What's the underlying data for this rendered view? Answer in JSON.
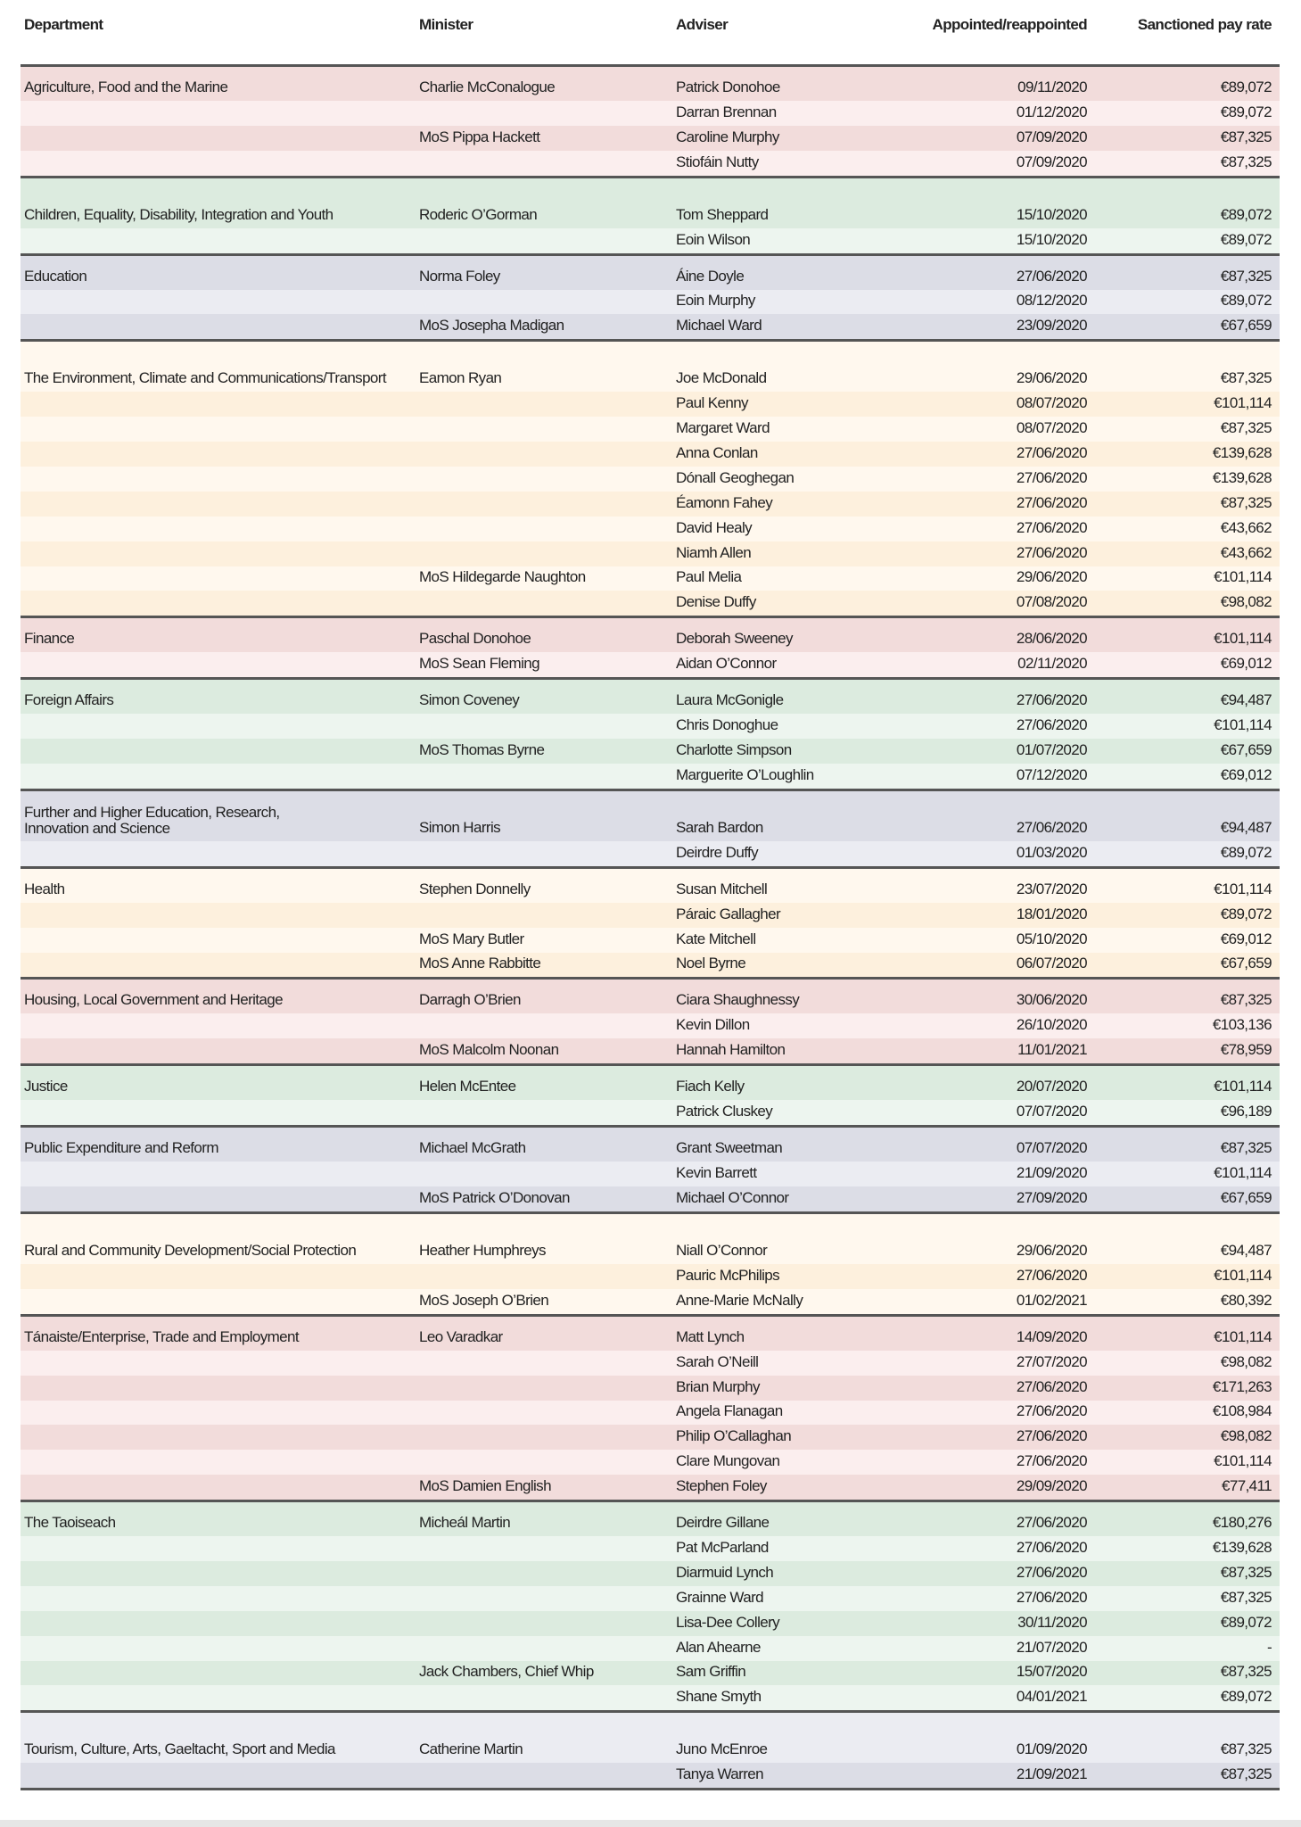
{
  "headers": {
    "department": "Department",
    "minister": "Minister",
    "adviser": "Adviser",
    "appointed": "Appointed/reappointed",
    "pay": "Sanctioned pay rate"
  },
  "themes": {
    "pink": [
      "#f2dcdb",
      "#fbeeee"
    ],
    "green": [
      "#dcebdf",
      "#edf5ef"
    ],
    "grey": [
      "#dcdde6",
      "#ebecf2"
    ],
    "cream": [
      "#fff8ee",
      "#fdf0dd"
    ]
  },
  "groups": [
    {
      "department": "Agriculture, Food and the Marine",
      "theme": "pink",
      "rows": [
        [
          "Charlie McConalogue",
          "Patrick Donohoe",
          "09/11/2020",
          "€89,072"
        ],
        [
          "",
          "Darran Brennan",
          "01/12/2020",
          "€89,072"
        ],
        [
          "MoS Pippa Hackett",
          "Caroline Murphy",
          "07/09/2020",
          "€87,325"
        ],
        [
          "",
          "Stiofáin Nutty",
          "07/09/2020",
          "€87,325"
        ]
      ]
    },
    {
      "department": "Children, Equality, Disability, Integration and Youth",
      "theme": "green",
      "tall": true,
      "rows": [
        [
          "Roderic O’Gorman",
          "Tom Sheppard",
          "15/10/2020",
          "€89,072"
        ],
        [
          "",
          "Eoin Wilson",
          "15/10/2020",
          "€89,072"
        ]
      ]
    },
    {
      "department": "Education",
      "theme": "grey",
      "rows": [
        [
          "Norma Foley",
          "Áine Doyle",
          "27/06/2020",
          "€87,325"
        ],
        [
          "",
          "Eoin Murphy",
          "08/12/2020",
          "€89,072"
        ],
        [
          "MoS Josepha Madigan",
          "Michael Ward",
          "23/09/2020",
          "€67,659"
        ]
      ]
    },
    {
      "department": "The Environment, Climate and Communications/Transport",
      "theme": "cream",
      "tall": true,
      "rows": [
        [
          "Eamon Ryan",
          "Joe McDonald",
          "29/06/2020",
          "€87,325"
        ],
        [
          "",
          "Paul Kenny",
          "08/07/2020",
          "€101,114"
        ],
        [
          "",
          "Margaret Ward",
          "08/07/2020",
          "€87,325"
        ],
        [
          "",
          "Anna Conlan",
          "27/06/2020",
          "€139,628"
        ],
        [
          "",
          "Dónall Geoghegan",
          "27/06/2020",
          "€139,628"
        ],
        [
          "",
          "Éamonn Fahey",
          "27/06/2020",
          "€87,325"
        ],
        [
          "",
          "David Healy",
          "27/06/2020",
          "€43,662"
        ],
        [
          "",
          "Niamh Allen",
          "27/06/2020",
          "€43,662"
        ],
        [
          "MoS Hildegarde Naughton",
          "Paul Melia",
          "29/06/2020",
          "€101,114"
        ],
        [
          "",
          "Denise Duffy",
          "07/08/2020",
          "€98,082"
        ]
      ]
    },
    {
      "department": "Finance",
      "theme": "pink",
      "rows": [
        [
          "Paschal Donohoe",
          "Deborah Sweeney",
          "28/06/2020",
          "€101,114"
        ],
        [
          "MoS Sean Fleming",
          "Aidan O’Connor",
          "02/11/2020",
          "€69,012"
        ]
      ]
    },
    {
      "department": "Foreign Affairs",
      "theme": "green",
      "rows": [
        [
          "Simon Coveney",
          "Laura McGonigle",
          "27/06/2020",
          "€94,487"
        ],
        [
          "",
          "Chris Donoghue",
          "27/06/2020",
          "€101,114"
        ],
        [
          "MoS Thomas Byrne",
          "Charlotte Simpson",
          "01/07/2020",
          "€67,659"
        ],
        [
          "",
          "Marguerite O’Loughlin",
          "07/12/2020",
          "€69,012"
        ]
      ]
    },
    {
      "department": "Further and Higher Education, Research,\nInnovation and Science",
      "theme": "grey",
      "tall": true,
      "two": true,
      "rows": [
        [
          "Simon Harris",
          "Sarah Bardon",
          "27/06/2020",
          "€94,487"
        ],
        [
          "",
          "Deirdre Duffy",
          "01/03/2020",
          "€89,072"
        ]
      ]
    },
    {
      "department": "Health",
      "theme": "cream",
      "rows": [
        [
          "Stephen Donnelly",
          "Susan Mitchell",
          "23/07/2020",
          "€101,114"
        ],
        [
          "",
          "Páraic Gallagher",
          "18/01/2020",
          "€89,072"
        ],
        [
          "MoS Mary Butler",
          "Kate Mitchell",
          "05/10/2020",
          "€69,012"
        ],
        [
          "MoS Anne Rabbitte",
          "Noel Byrne",
          "06/07/2020",
          "€67,659"
        ]
      ]
    },
    {
      "department": "Housing, Local Government and Heritage",
      "theme": "pink",
      "rows": [
        [
          "Darragh O’Brien",
          "Ciara Shaughnessy",
          "30/06/2020",
          "€87,325"
        ],
        [
          "",
          "Kevin Dillon",
          "26/10/2020",
          "€103,136"
        ],
        [
          "MoS Malcolm Noonan",
          "Hannah Hamilton",
          "11/01/2021",
          "€78,959"
        ]
      ]
    },
    {
      "department": "Justice",
      "theme": "green",
      "rows": [
        [
          "Helen McEntee",
          "Fiach Kelly",
          "20/07/2020",
          "€101,114"
        ],
        [
          "",
          "Patrick Cluskey",
          "07/07/2020",
          "€96,189"
        ]
      ]
    },
    {
      "department": "Public Expenditure and Reform",
      "theme": "grey",
      "rows": [
        [
          "Michael McGrath",
          "Grant Sweetman",
          "07/07/2020",
          "€87,325"
        ],
        [
          "",
          "Kevin Barrett",
          "21/09/2020",
          "€101,114"
        ],
        [
          "MoS Patrick O’Donovan",
          "Michael O’Connor",
          "27/09/2020",
          "€67,659"
        ]
      ]
    },
    {
      "department": "Rural and Community Development/Social Protection",
      "theme": "cream",
      "tall": true,
      "rows": [
        [
          "Heather Humphreys",
          "Niall O’Connor",
          "29/06/2020",
          "€94,487"
        ],
        [
          "",
          "Pauric McPhilips",
          "27/06/2020",
          "€101,114"
        ],
        [
          "MoS Joseph O’Brien",
          "Anne-Marie McNally",
          "01/02/2021",
          "€80,392"
        ]
      ]
    },
    {
      "department": "Tánaiste/Enterprise, Trade and Employment",
      "theme": "pink",
      "rows": [
        [
          "Leo Varadkar",
          "Matt Lynch",
          "14/09/2020",
          "€101,114"
        ],
        [
          "",
          "Sarah O’Neill",
          "27/07/2020",
          "€98,082"
        ],
        [
          "",
          "Brian Murphy",
          "27/06/2020",
          "€171,263"
        ],
        [
          "",
          "Angela Flanagan",
          "27/06/2020",
          "€108,984"
        ],
        [
          "",
          "Philip O’Callaghan",
          "27/06/2020",
          "€98,082"
        ],
        [
          "",
          "Clare Mungovan",
          "27/06/2020",
          "€101,114"
        ],
        [
          "MoS Damien English",
          "Stephen Foley",
          "29/09/2020",
          "€77,411"
        ]
      ]
    },
    {
      "department": "The Taoiseach",
      "theme": "green",
      "rows": [
        [
          "Micheál Martin",
          "Deirdre Gillane",
          "27/06/2020",
          "€180,276"
        ],
        [
          "",
          "Pat McParland",
          "27/06/2020",
          "€139,628"
        ],
        [
          "",
          "Diarmuid Lynch",
          "27/06/2020",
          "€87,325"
        ],
        [
          "",
          "Grainne Ward",
          "27/06/2020",
          "€87,325"
        ],
        [
          "",
          "Lisa-Dee Collery",
          "30/11/2020",
          "€89,072"
        ],
        [
          "",
          "Alan Ahearne",
          "21/07/2020",
          "-"
        ],
        [
          "Jack Chambers, Chief Whip",
          "Sam Griffin",
          "15/07/2020",
          "€87,325"
        ],
        [
          "",
          "Shane Smyth",
          "04/01/2021",
          "€89,072"
        ]
      ]
    },
    {
      "department": "Tourism, Culture, Arts, Gaeltacht, Sport and Media",
      "theme": "grey",
      "tall": true,
      "lightFirst": true,
      "rows": [
        [
          "Catherine Martin",
          "Juno McEnroe",
          "01/09/2020",
          "€87,325"
        ],
        [
          "",
          "Tanya Warren",
          "21/09/2021",
          "€87,325"
        ]
      ]
    }
  ]
}
